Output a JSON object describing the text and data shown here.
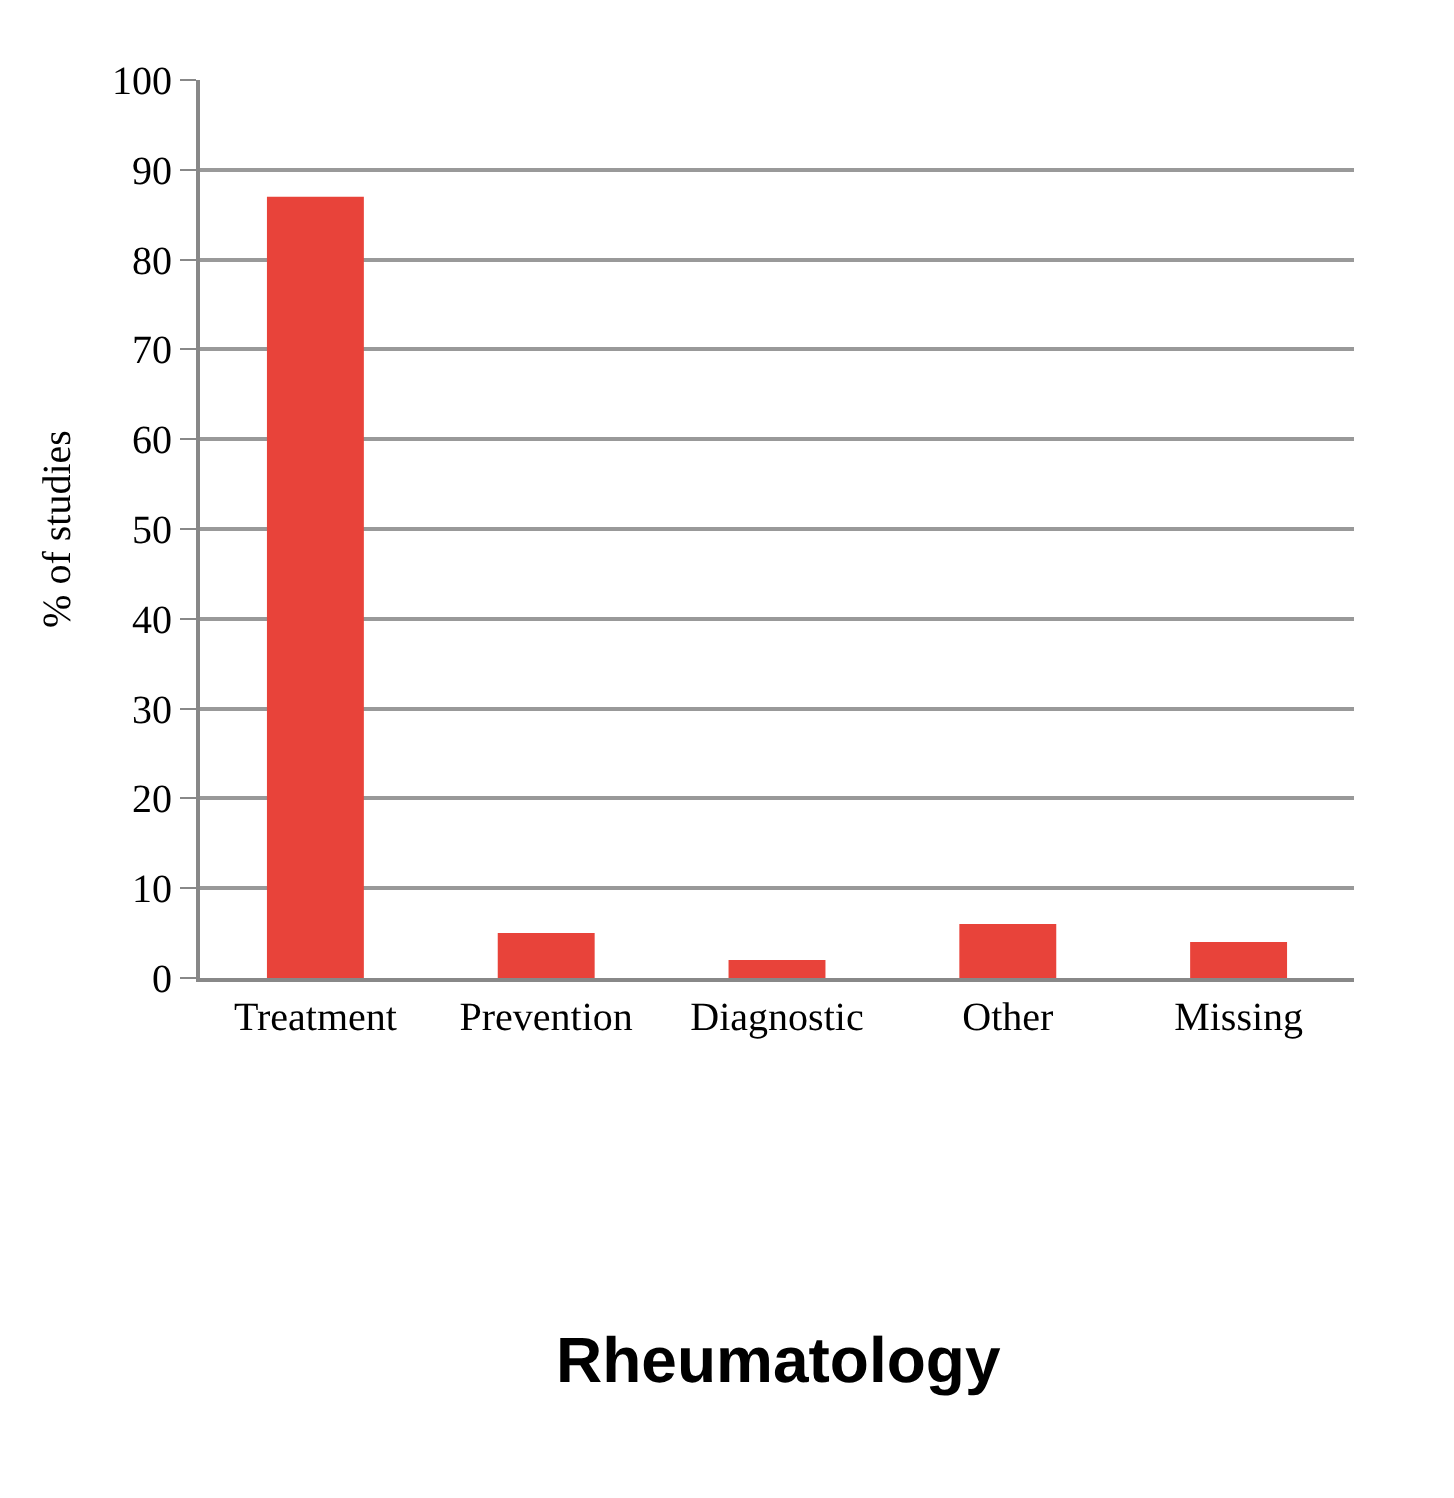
{
  "chart_data": {
    "type": "bar",
    "title": "Rheumatology",
    "ylabel": "% of studies",
    "categories": [
      "Treatment",
      "Prevention",
      "Diagnostic",
      "Other",
      "Missing"
    ],
    "values": [
      87,
      5,
      2,
      6,
      4
    ],
    "color": "#e8433a",
    "ylim": [
      0,
      100
    ],
    "yticks": [
      0,
      10,
      20,
      30,
      40,
      50,
      60,
      70,
      80,
      90,
      100
    ],
    "grid": "y"
  }
}
